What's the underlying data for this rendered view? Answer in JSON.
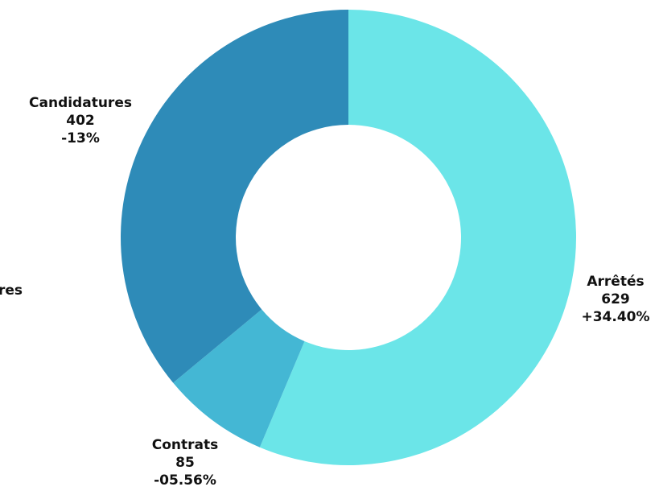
{
  "chart_data": {
    "type": "pie",
    "donut": true,
    "title": "",
    "slices": [
      {
        "name": "Arrêtés",
        "value": 629,
        "change": "+34.40%",
        "color": "#6be5e8"
      },
      {
        "name": "Contrats",
        "value": 85,
        "change": "-05.56%",
        "color": "#44b7d4"
      },
      {
        "name": "Candidatures",
        "value": 402,
        "change": "-13%",
        "color": "#2e8bb8"
      }
    ],
    "clipped_label": "res"
  }
}
